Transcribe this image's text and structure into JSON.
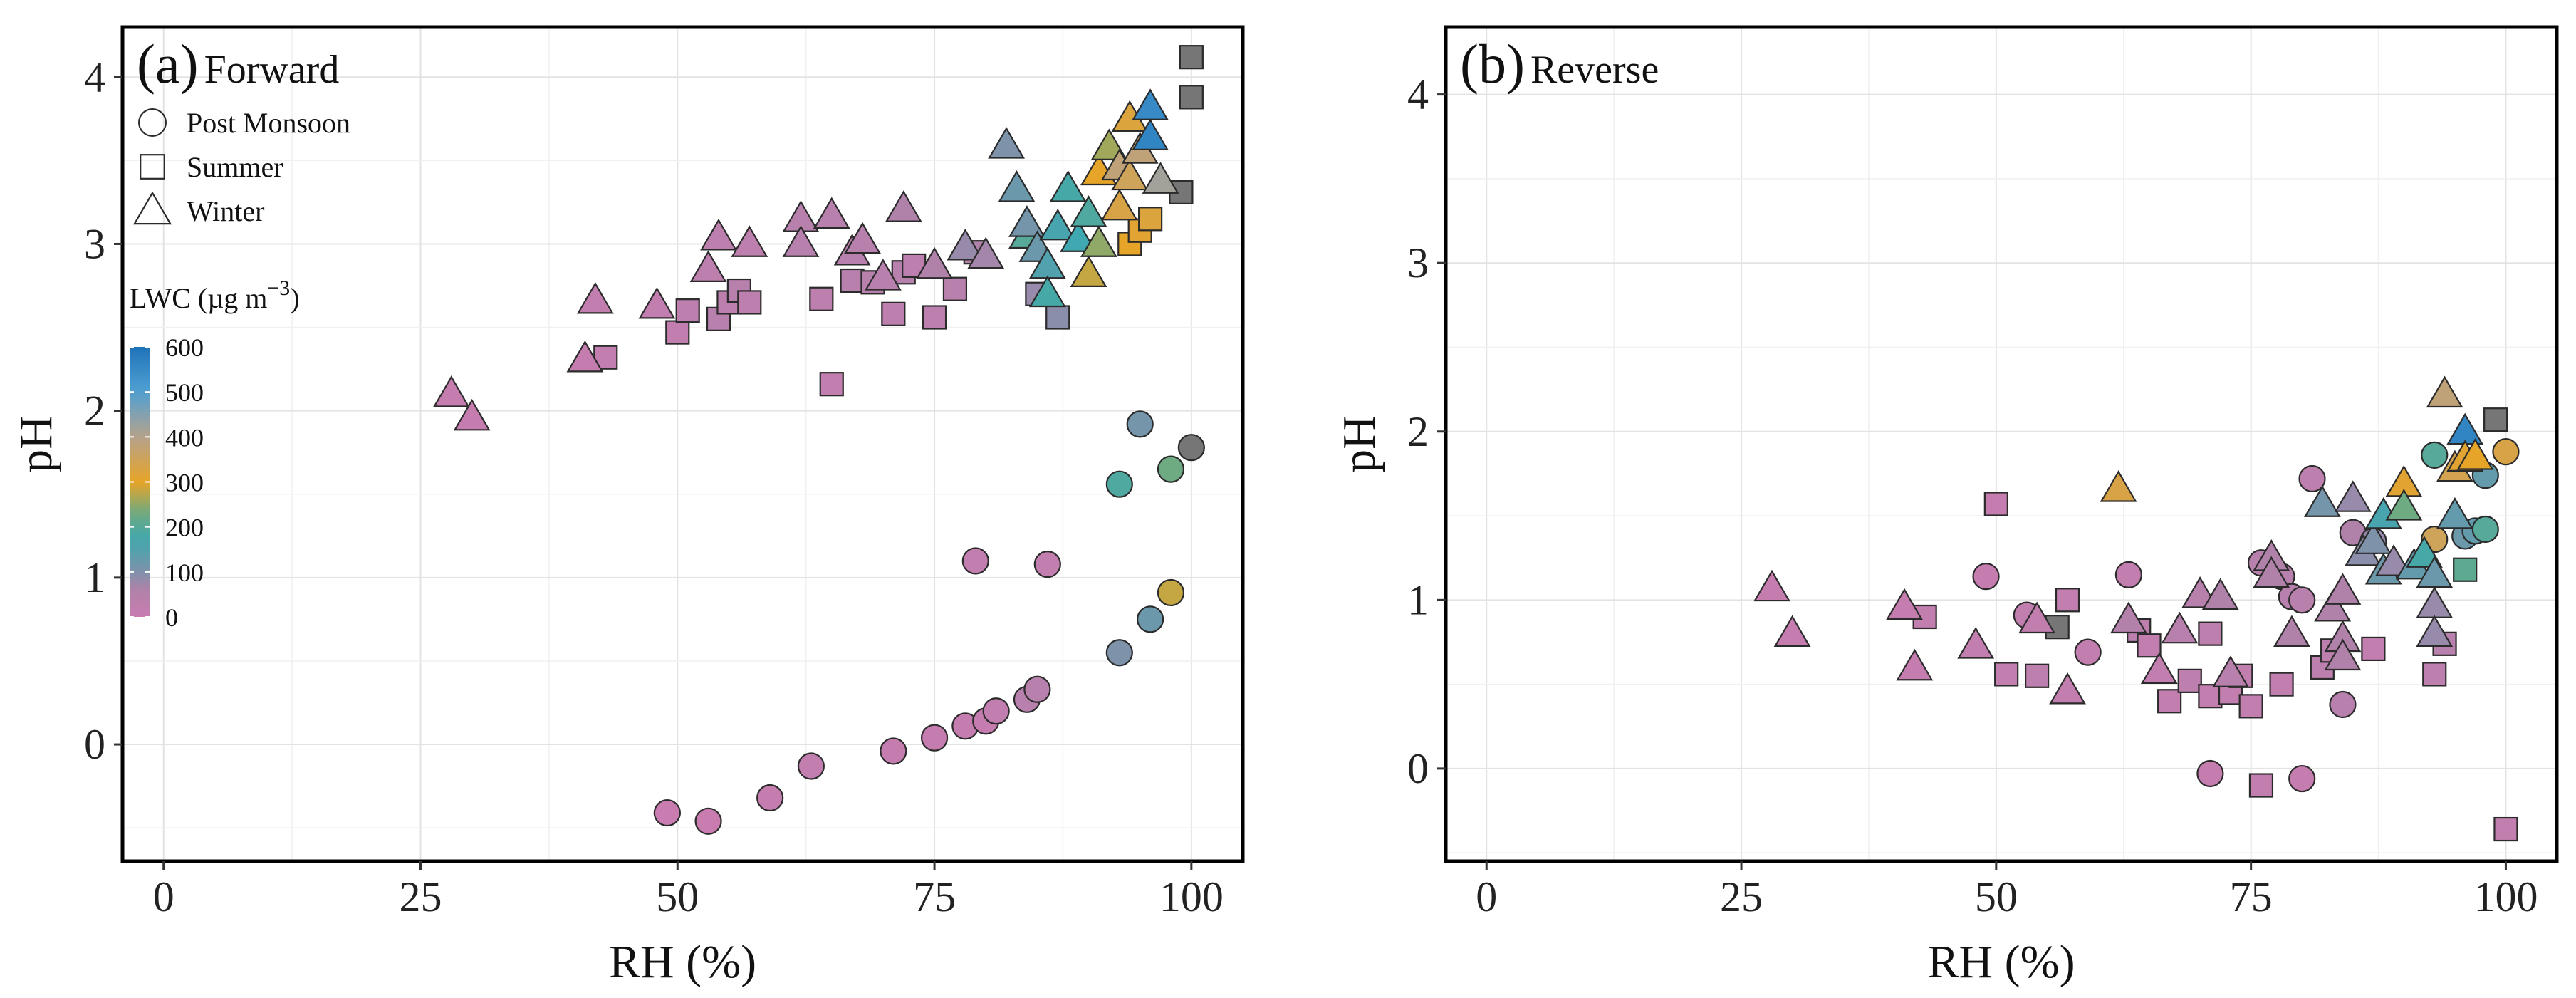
{
  "chart_data": [
    {
      "type": "scatter",
      "panel": "a",
      "title": "(a) Forward",
      "panel_letter": "(a)",
      "panel_title": "Forward",
      "xlabel": "RH (%)",
      "ylabel": "pH",
      "xlim": [
        -4,
        105
      ],
      "ylim": [
        -0.7,
        4.3
      ],
      "xticks": [
        0,
        25,
        50,
        75,
        100
      ],
      "yticks": [
        0,
        1,
        2,
        3,
        4
      ],
      "legend_shape_title": "",
      "legend_shapes": [
        {
          "label": "Post Monsoon",
          "marker": "circle"
        },
        {
          "label": "Summer",
          "marker": "square"
        },
        {
          "label": "Winter",
          "marker": "triangle"
        }
      ],
      "colorbar": {
        "title": "LWC (µg m",
        "title_sup": "−3",
        "title_close": ")",
        "ticks": [
          0,
          100,
          200,
          300,
          400,
          500,
          600
        ],
        "range": [
          0,
          600
        ]
      },
      "series": [
        {
          "name": "Post Monsoon",
          "marker": "circle",
          "points": [
            [
              49,
              -0.41,
              0
            ],
            [
              53,
              -0.46,
              0
            ],
            [
              59,
              -0.32,
              10
            ],
            [
              63,
              -0.13,
              20
            ],
            [
              71,
              -0.04,
              10
            ],
            [
              75,
              0.04,
              10
            ],
            [
              78,
              0.11,
              10
            ],
            [
              80,
              0.14,
              10
            ],
            [
              81,
              0.2,
              20
            ],
            [
              84,
              0.27,
              40
            ],
            [
              85,
              0.33,
              40
            ],
            [
              79,
              1.1,
              20
            ],
            [
              86,
              1.08,
              20
            ],
            [
              93,
              0.55,
              100
            ],
            [
              96,
              0.75,
              120
            ],
            [
              98,
              0.91,
              280
            ],
            [
              93,
              1.56,
              190
            ],
            [
              98,
              1.65,
              230
            ],
            [
              100,
              1.78,
              700
            ],
            [
              95,
              1.92,
              110
            ]
          ]
        },
        {
          "name": "Summer",
          "marker": "square",
          "points": [
            [
              43,
              2.32,
              20
            ],
            [
              50,
              2.47,
              20
            ],
            [
              51,
              2.6,
              30
            ],
            [
              54,
              2.55,
              40
            ],
            [
              55,
              2.65,
              30
            ],
            [
              56,
              2.72,
              40
            ],
            [
              57,
              2.65,
              30
            ],
            [
              64,
              2.67,
              30
            ],
            [
              65,
              2.16,
              20
            ],
            [
              67,
              2.78,
              40
            ],
            [
              69,
              2.77,
              40
            ],
            [
              71,
              2.58,
              30
            ],
            [
              72,
              2.83,
              40
            ],
            [
              73,
              2.87,
              30
            ],
            [
              75,
              2.56,
              30
            ],
            [
              77,
              2.73,
              40
            ],
            [
              79,
              2.95,
              60
            ],
            [
              85,
              2.7,
              80
            ],
            [
              87,
              2.56,
              90
            ],
            [
              94,
              3.0,
              300
            ],
            [
              95,
              3.08,
              310
            ],
            [
              96,
              3.15,
              320
            ],
            [
              99,
              3.31,
              700
            ],
            [
              100,
              3.88,
              700
            ],
            [
              100,
              4.12,
              700
            ]
          ]
        },
        {
          "name": "Winter",
          "marker": "triangle",
          "points": [
            [
              28,
              2.1,
              10
            ],
            [
              30,
              1.96,
              10
            ],
            [
              41,
              2.31,
              10
            ],
            [
              42,
              2.66,
              20
            ],
            [
              48,
              2.63,
              20
            ],
            [
              53,
              2.85,
              30
            ],
            [
              54,
              3.04,
              30
            ],
            [
              57,
              3.0,
              30
            ],
            [
              62,
              3.15,
              40
            ],
            [
              62,
              3.0,
              40
            ],
            [
              65,
              3.17,
              40
            ],
            [
              67,
              2.95,
              40
            ],
            [
              68,
              3.02,
              40
            ],
            [
              70,
              2.8,
              40
            ],
            [
              72,
              3.21,
              60
            ],
            [
              75,
              2.87,
              60
            ],
            [
              78,
              2.98,
              80
            ],
            [
              80,
              2.93,
              70
            ],
            [
              82,
              3.59,
              100
            ],
            [
              83,
              3.33,
              120
            ],
            [
              84,
              3.05,
              200
            ],
            [
              84,
              3.12,
              110
            ],
            [
              85,
              2.97,
              120
            ],
            [
              86,
              2.87,
              150
            ],
            [
              86,
              2.7,
              180
            ],
            [
              87,
              3.1,
              160
            ],
            [
              88,
              3.33,
              180
            ],
            [
              89,
              3.03,
              170
            ],
            [
              90,
              2.82,
              280
            ],
            [
              90,
              3.18,
              190
            ],
            [
              91,
              3.43,
              300
            ],
            [
              91,
              3.0,
              250
            ],
            [
              92,
              3.58,
              260
            ],
            [
              93,
              3.22,
              330
            ],
            [
              93,
              3.46,
              380
            ],
            [
              94,
              3.75,
              320
            ],
            [
              94,
              3.4,
              350
            ],
            [
              95,
              3.56,
              380
            ],
            [
              96,
              3.82,
              550
            ],
            [
              96,
              3.64,
              560
            ],
            [
              97,
              3.38,
              420
            ]
          ]
        }
      ]
    },
    {
      "type": "scatter",
      "panel": "b",
      "title": "(b) Reverse",
      "panel_letter": "(b)",
      "panel_title": "Reverse",
      "xlabel": "RH (%)",
      "ylabel": "pH",
      "xlim": [
        -4,
        105
      ],
      "ylim": [
        -0.55,
        4.4
      ],
      "xticks": [
        0,
        25,
        50,
        75,
        100
      ],
      "yticks": [
        0,
        1,
        2,
        3,
        4
      ],
      "series": [
        {
          "name": "Post Monsoon",
          "marker": "circle",
          "points": [
            [
              49,
              1.14,
              10
            ],
            [
              53,
              0.91,
              20
            ],
            [
              59,
              0.69,
              20
            ],
            [
              63,
              1.15,
              20
            ],
            [
              71,
              -0.03,
              10
            ],
            [
              80,
              -0.06,
              10
            ],
            [
              76,
              1.22,
              40
            ],
            [
              78,
              1.14,
              40
            ],
            [
              79,
              1.02,
              40
            ],
            [
              80,
              1.0,
              40
            ],
            [
              81,
              1.72,
              30
            ],
            [
              84,
              0.38,
              40
            ],
            [
              85,
              1.4,
              60
            ],
            [
              87,
              1.35,
              80
            ],
            [
              93,
              1.36,
              350
            ],
            [
              93,
              1.86,
              200
            ],
            [
              96,
              1.38,
              120
            ],
            [
              97,
              1.41,
              130
            ],
            [
              98,
              1.42,
              200
            ],
            [
              98,
              1.74,
              130
            ],
            [
              100,
              1.88,
              330
            ]
          ]
        },
        {
          "name": "Summer",
          "marker": "square",
          "points": [
            [
              43,
              0.9,
              20
            ],
            [
              50,
              1.57,
              10
            ],
            [
              51,
              0.56,
              20
            ],
            [
              54,
              0.55,
              30
            ],
            [
              56,
              0.84,
              700
            ],
            [
              57,
              1.0,
              20
            ],
            [
              64,
              0.82,
              30
            ],
            [
              65,
              0.73,
              20
            ],
            [
              67,
              0.4,
              20
            ],
            [
              69,
              0.52,
              30
            ],
            [
              71,
              0.43,
              20
            ],
            [
              71,
              0.8,
              30
            ],
            [
              73,
              0.45,
              20
            ],
            [
              74,
              0.55,
              20
            ],
            [
              75,
              0.37,
              20
            ],
            [
              76,
              -0.1,
              20
            ],
            [
              78,
              0.5,
              20
            ],
            [
              82,
              0.6,
              30
            ],
            [
              83,
              0.7,
              30
            ],
            [
              87,
              0.71,
              20
            ],
            [
              93,
              0.56,
              30
            ],
            [
              94,
              0.74,
              40
            ],
            [
              96,
              1.18,
              210
            ],
            [
              99,
              2.07,
              700
            ],
            [
              100,
              -0.36,
              20
            ]
          ]
        },
        {
          "name": "Winter",
          "marker": "triangle",
          "points": [
            [
              28,
              1.07,
              10
            ],
            [
              30,
              0.8,
              10
            ],
            [
              41,
              0.96,
              10
            ],
            [
              42,
              0.6,
              10
            ],
            [
              48,
              0.73,
              20
            ],
            [
              54,
              0.88,
              20
            ],
            [
              57,
              0.46,
              20
            ],
            [
              62,
              1.66,
              330
            ],
            [
              63,
              0.88,
              50
            ],
            [
              66,
              0.58,
              20
            ],
            [
              68,
              0.82,
              40
            ],
            [
              70,
              1.03,
              40
            ],
            [
              72,
              1.02,
              60
            ],
            [
              73,
              0.56,
              40
            ],
            [
              77,
              1.25,
              60
            ],
            [
              77,
              1.15,
              60
            ],
            [
              79,
              0.8,
              60
            ],
            [
              82,
              1.57,
              110
            ],
            [
              83,
              0.95,
              60
            ],
            [
              84,
              1.05,
              60
            ],
            [
              84,
              0.77,
              60
            ],
            [
              84,
              0.66,
              60
            ],
            [
              85,
              1.6,
              80
            ],
            [
              86,
              1.28,
              90
            ],
            [
              87,
              1.35,
              100
            ],
            [
              88,
              1.5,
              160
            ],
            [
              88,
              1.17,
              120
            ],
            [
              89,
              1.22,
              80
            ],
            [
              90,
              1.69,
              310
            ],
            [
              90,
              1.55,
              230
            ],
            [
              91,
              1.2,
              130
            ],
            [
              92,
              1.27,
              180
            ],
            [
              93,
              1.15,
              120
            ],
            [
              93,
              0.97,
              80
            ],
            [
              93,
              0.8,
              80
            ],
            [
              94,
              2.22,
              380
            ],
            [
              95,
              1.78,
              340
            ],
            [
              95,
              1.5,
              130
            ],
            [
              96,
              2.0,
              560
            ],
            [
              96,
              1.84,
              310
            ],
            [
              97,
              1.85,
              300
            ]
          ]
        }
      ]
    }
  ]
}
